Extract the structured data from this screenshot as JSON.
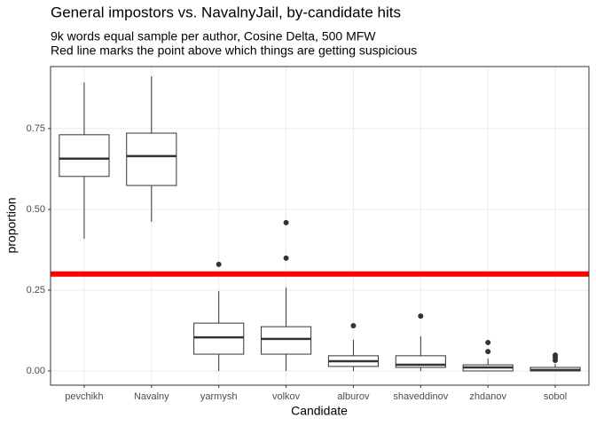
{
  "chart_data": {
    "type": "boxplot",
    "title": "General impostors vs. NavalnyJail, by-candidate hits",
    "subtitle": [
      "9k words equal sample per author, Cosine Delta, 500 MFW",
      "Red line marks the point above which things are getting suspicious"
    ],
    "x_label": "Candidate",
    "y_label": "proportion",
    "categories": [
      "pevchikh",
      "Navalny",
      "yarmysh",
      "volkov",
      "alburov",
      "shaveddinov",
      "zhdanov",
      "sobol"
    ],
    "boxes": [
      {
        "low": 0.409,
        "q1": 0.602,
        "median": 0.657,
        "q3": 0.731,
        "high": 0.893,
        "outliers": []
      },
      {
        "low": 0.462,
        "q1": 0.574,
        "median": 0.665,
        "q3": 0.736,
        "high": 0.912,
        "outliers": []
      },
      {
        "low": 0,
        "q1": 0.052,
        "median": 0.104,
        "q3": 0.148,
        "high": 0.247,
        "outliers": [
          0.33
        ]
      },
      {
        "low": 0,
        "q1": 0.052,
        "median": 0.099,
        "q3": 0.137,
        "high": 0.258,
        "outliers": [
          0.459,
          0.349
        ]
      },
      {
        "low": 0,
        "q1": 0.014,
        "median": 0.03,
        "q3": 0.047,
        "high": 0.096,
        "outliers": [
          0.14
        ]
      },
      {
        "low": 0,
        "q1": 0.011,
        "median": 0.019,
        "q3": 0.047,
        "high": 0.107,
        "outliers": [
          0.17
        ]
      },
      {
        "low": 0,
        "q1": 0,
        "median": 0.011,
        "q3": 0.019,
        "high": 0.038,
        "outliers": [
          0.088,
          0.06
        ]
      },
      {
        "low": 0,
        "q1": 0,
        "median": 0.003,
        "q3": 0.011,
        "high": 0.022,
        "outliers": [
          0.033,
          0.041,
          0.049
        ]
      }
    ],
    "hline": {
      "value": 0.3,
      "color": "#ff0000"
    },
    "color": "#333333",
    "ylim": [
      -0.044,
      0.942
    ],
    "yticks": [
      {
        "value": 0,
        "label": "0.00"
      },
      {
        "value": 0.25,
        "label": "0.25"
      },
      {
        "value": 0.5,
        "label": "0.50"
      },
      {
        "value": 0.75,
        "label": "0.75"
      }
    ],
    "grid": true
  }
}
